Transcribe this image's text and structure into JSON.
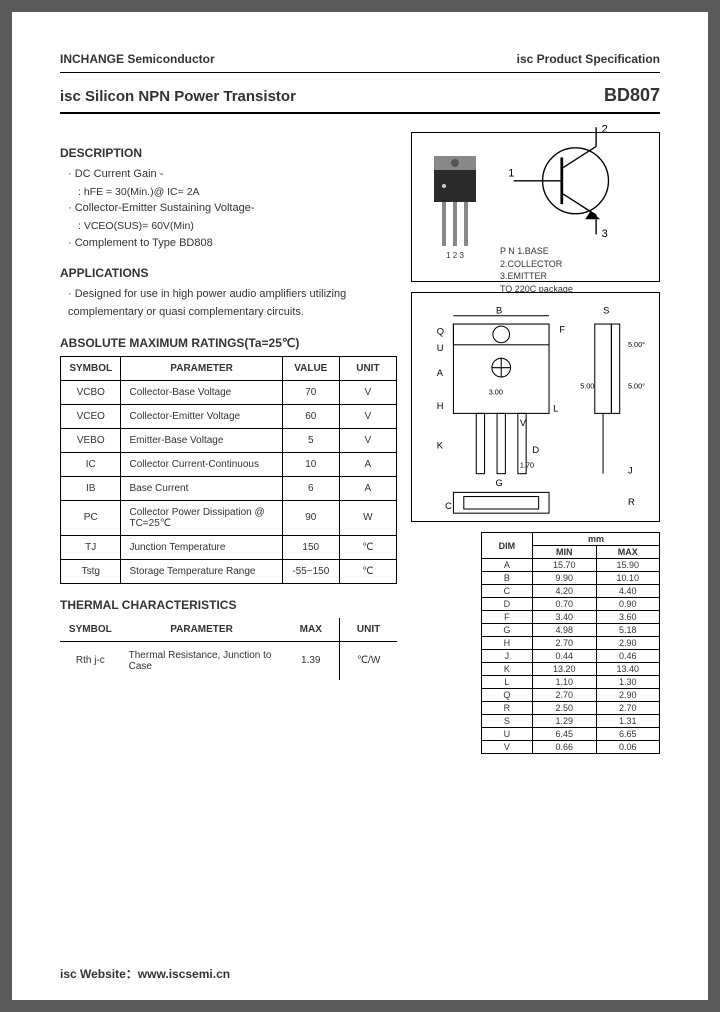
{
  "header": {
    "company": "INCHANGE Semiconductor",
    "doc_type": "isc Product Specification",
    "product_title": "isc Silicon NPN Power Transistor",
    "part_number": "BD807"
  },
  "description": {
    "heading": "DESCRIPTION",
    "items": [
      {
        "main": "DC Current Gain -",
        "sub": ": hFE = 30(Min.)@ IC= 2A"
      },
      {
        "main": "Collector-Emitter Sustaining Voltage-",
        "sub": ": VCEO(SUS)= 60V(Min)"
      },
      {
        "main": "Complement to Type BD808",
        "sub": ""
      }
    ]
  },
  "applications": {
    "heading": "APPLICATIONS",
    "text": "Designed for use in high power audio amplifiers utilizing complementary or quasi complementary circuits."
  },
  "ratings": {
    "heading": "ABSOLUTE MAXIMUM RATINGS(Ta=25℃)",
    "columns": [
      "SYMBOL",
      "PARAMETER",
      "VALUE",
      "UNIT"
    ],
    "rows": [
      [
        "VCBO",
        "Collector-Base Voltage",
        "70",
        "V"
      ],
      [
        "VCEO",
        "Collector-Emitter Voltage",
        "60",
        "V"
      ],
      [
        "VEBO",
        "Emitter-Base Voltage",
        "5",
        "V"
      ],
      [
        "IC",
        "Collector Current-Continuous",
        "10",
        "A"
      ],
      [
        "IB",
        "Base Current",
        "6",
        "A"
      ],
      [
        "PC",
        "Collector Power Dissipation @ TC=25℃",
        "90",
        "W"
      ],
      [
        "TJ",
        "Junction Temperature",
        "150",
        "℃"
      ],
      [
        "Tstg",
        "Storage Temperature Range",
        "-55~150",
        "℃"
      ]
    ]
  },
  "thermal": {
    "heading": "THERMAL CHARACTERISTICS",
    "columns": [
      "SYMBOL",
      "PARAMETER",
      "MAX",
      "UNIT"
    ],
    "row": [
      "Rth j-c",
      "Thermal Resistance, Junction to Case",
      "1.39",
      "℃/W"
    ]
  },
  "pinout": {
    "pins_label": "1  2  3",
    "p1": "P N 1.BASE",
    "p2": "2.COLLECTOR",
    "p3": "3.EMITTER",
    "pkg": "TO 220C package",
    "term1": "1",
    "term2": "2",
    "term3": "3"
  },
  "dimensions": {
    "unit_label": "mm",
    "head": [
      "DIM",
      "MIN",
      "MAX"
    ],
    "rows": [
      [
        "A",
        "15.70",
        "15.90"
      ],
      [
        "B",
        "9.90",
        "10.10"
      ],
      [
        "C",
        "4.20",
        "4.40"
      ],
      [
        "D",
        "0.70",
        "0.90"
      ],
      [
        "F",
        "3.40",
        "3.60"
      ],
      [
        "G",
        "4.98",
        "5.18"
      ],
      [
        "H",
        "2.70",
        "2.90"
      ],
      [
        "J",
        "0.44",
        "0.46"
      ],
      [
        "K",
        "13.20",
        "13.40"
      ],
      [
        "L",
        "1.10",
        "1.30"
      ],
      [
        "Q",
        "2.70",
        "2.90"
      ],
      [
        "R",
        "2.50",
        "2.70"
      ],
      [
        "S",
        "1.29",
        "1.31"
      ],
      [
        "U",
        "6.45",
        "6.65"
      ],
      [
        "V",
        "0.66",
        "0.06"
      ]
    ]
  },
  "footer": {
    "text": "isc Website：www.iscsemi.cn"
  },
  "style": {
    "page_bg": "#ffffff",
    "outer_bg": "#5a5a5a",
    "text_color": "#333333",
    "border_color": "#000000"
  }
}
